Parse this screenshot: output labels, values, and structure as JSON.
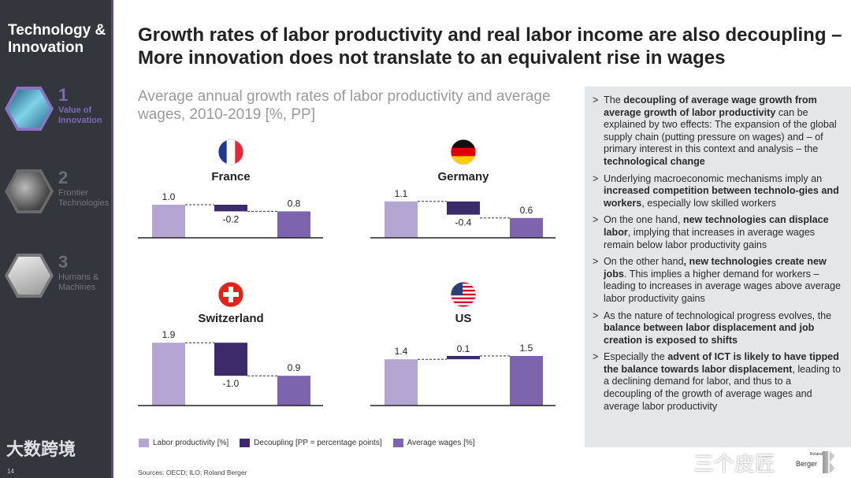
{
  "sidebar": {
    "section_title": "Technology & Innovation",
    "items": [
      {
        "number": "1",
        "label": "Value of Innovation",
        "active": true
      },
      {
        "number": "2",
        "label": "Frontier Technologies",
        "active": false
      },
      {
        "number": "3",
        "label": "Humans & Machines",
        "active": false
      }
    ],
    "page_number": "14",
    "watermark": "大数跨境"
  },
  "title": "Growth rates of labor productivity and real labor income are also decoupling – More innovation does not translate to an equivalent rise in wages",
  "subtitle": "Average annual growth rates of labor productivity and average wages, 2010-2019 [%, PP]",
  "colors": {
    "labor": "#b4a5d3",
    "decoupling": "#3d2a6a",
    "wages": "#7c65ae",
    "sidebar": "#34363e",
    "panel": "#e5e6e8"
  },
  "chart_data": {
    "type": "bar",
    "title": "Average annual growth rates of labor productivity and average wages, 2010-2019 [%, PP]",
    "categories": [
      "Labor productivity",
      "Decoupling",
      "Average wages"
    ],
    "series": [
      {
        "name": "France",
        "flag": "france-flag",
        "values": [
          1.0,
          -0.2,
          0.8
        ],
        "labels": [
          "1.0",
          "-0.2",
          "0.8"
        ]
      },
      {
        "name": "Germany",
        "flag": "germany-flag",
        "values": [
          1.1,
          -0.4,
          0.6
        ],
        "labels": [
          "1.1",
          "-0.4",
          "0.6"
        ]
      },
      {
        "name": "Switzerland",
        "flag": "switzerland-flag",
        "values": [
          1.9,
          -1.0,
          0.9
        ],
        "labels": [
          "1.9",
          "-1.0",
          "0.9"
        ]
      },
      {
        "name": "US",
        "flag": "us-flag",
        "values": [
          1.4,
          0.1,
          1.5
        ],
        "labels": [
          "1.4",
          "0.1",
          "1.5"
        ]
      }
    ],
    "legend": [
      "Labor productivity [%]",
      "Decoupling [PP = percentage points]",
      "Average wages [%]"
    ],
    "legend_position": "bottom"
  },
  "sources": "Sources: OECD; ILO; Roland Berger",
  "bullets": [
    [
      [
        "The ",
        0
      ],
      [
        "decoupling of average wage growth from average growth of labor productivity",
        1
      ],
      [
        " can be explained by two effects: The expansion of the global supply chain (putting pressure on wages) and – of primary interest in this context and analysis – the ",
        0
      ],
      [
        "technological change",
        1
      ]
    ],
    [
      [
        "Underlying macroeconomic mechanisms imply an ",
        0
      ],
      [
        "increased competition between technolo-gies and workers",
        1
      ],
      [
        ", especially low skilled workers",
        0
      ]
    ],
    [
      [
        "On the one hand, ",
        0
      ],
      [
        "new technologies can displace labor",
        1
      ],
      [
        ", implying that increases in average wages remain below labor productivity gains",
        0
      ]
    ],
    [
      [
        "On the other hand",
        0
      ],
      [
        ", new technologies create new jobs",
        1
      ],
      [
        ". This implies a higher demand for workers – leading to increases in average wages above average labor productivity gains",
        0
      ]
    ],
    [
      [
        "As the nature of technological progress evolves, the ",
        0
      ],
      [
        "balance between labor displacement and job creation is exposed to shifts",
        1
      ]
    ],
    [
      [
        "Especially the ",
        0
      ],
      [
        "advent of ICT is likely to have tipped the balance towards labor displacement",
        1
      ],
      [
        ", leading to a declining demand for labor, and thus to a decoupling of the growth of average wages and average labor productivity",
        0
      ]
    ]
  ],
  "logo": {
    "small": "Roland",
    "name": "Berger"
  },
  "watermark": "三个皮匠"
}
